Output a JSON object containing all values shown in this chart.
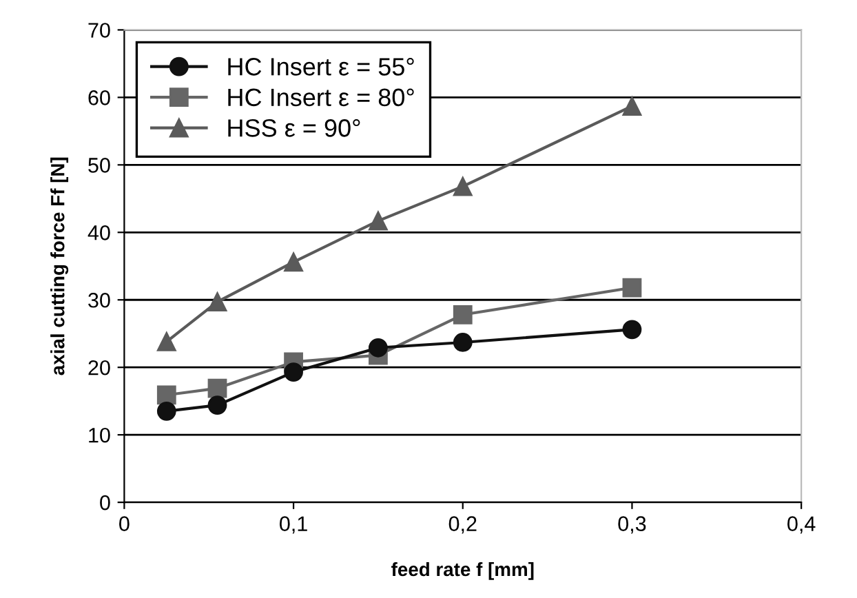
{
  "chart_data": {
    "type": "line",
    "xlabel": "feed rate f [mm]",
    "ylabel": "axial cutting force Ff [N]",
    "x": [
      0.025,
      0.055,
      0.1,
      0.15,
      0.2,
      0.3
    ],
    "series": [
      {
        "name": "HC Insert ε = 55°",
        "color": "#111111",
        "marker": "circle",
        "values": [
          13.5,
          14.4,
          19.3,
          22.9,
          23.7,
          25.6
        ]
      },
      {
        "name": "HC Insert ε = 80°",
        "color": "#666666",
        "marker": "square",
        "values": [
          15.9,
          16.9,
          20.8,
          21.8,
          27.8,
          31.8
        ]
      },
      {
        "name": "HSS ε = 90°",
        "color": "#5a5a5a",
        "marker": "triangle",
        "values": [
          23.8,
          29.7,
          35.6,
          41.7,
          46.8,
          58.7
        ]
      }
    ],
    "xlim": [
      0,
      0.4
    ],
    "ylim": [
      0,
      70
    ],
    "xticks": [
      0,
      {
        "value": 0.1,
        "label": "0,1"
      },
      {
        "value": 0.2,
        "label": "0,2"
      },
      {
        "value": 0.3,
        "label": "0,3"
      },
      {
        "value": 0.4,
        "label": "0,4"
      }
    ],
    "yticks": [
      0,
      10,
      20,
      30,
      40,
      50,
      60,
      70
    ],
    "grid": "y",
    "legend": "top left",
    "line_style": "solid"
  }
}
